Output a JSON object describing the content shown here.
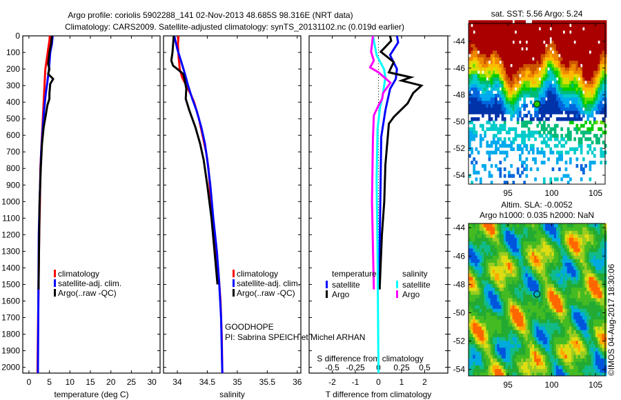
{
  "header": {
    "title_line1": "Argo profile: coriolis 5902288_141 02-Nov-2013 48.685S 98.316E (NRT data)",
    "title_line2": "Climatology: CARS2009. Satellite-adjusted climatology: synTS_20131102.nc (0.019d earlier)"
  },
  "colors": {
    "climatology": "#ff0000",
    "satellite": "#0000ff",
    "argo": "#000000",
    "sal_satellite": "#00ffff",
    "sal_argo": "#ff00ff"
  },
  "depth_axis": {
    "ticks": [
      "0",
      "100",
      "200",
      "300",
      "400",
      "500",
      "600",
      "700",
      "800",
      "900",
      "1000",
      "1100",
      "1200",
      "1300",
      "1400",
      "1500",
      "1600",
      "1700",
      "1800",
      "1900",
      "2000"
    ],
    "range": [
      0,
      2035
    ]
  },
  "chart_data": [
    {
      "type": "line",
      "xlabel": "temperature (deg C)",
      "ylabel": "depth",
      "xlim": [
        -1.5,
        32
      ],
      "ylim": [
        2035,
        0
      ],
      "xticks": [
        0,
        5,
        10,
        15,
        20,
        25,
        30
      ],
      "legend": {
        "placement": "lower-middle",
        "entries": [
          "climatology",
          "satellite-adj. clim.",
          "Argo(..raw -QC)"
        ]
      },
      "series": [
        {
          "name": "climatology",
          "color": "#ff0000",
          "points": [
            [
              5.1,
              0
            ],
            [
              5.0,
              30
            ],
            [
              4.7,
              80
            ],
            [
              4.3,
              150
            ],
            [
              4.0,
              200
            ],
            [
              3.8,
              300
            ],
            [
              3.6,
              400
            ],
            [
              3.4,
              500
            ],
            [
              3.1,
              650
            ],
            [
              2.8,
              800
            ],
            [
              2.7,
              1000
            ],
            [
              2.5,
              1200
            ],
            [
              2.4,
              1400
            ],
            [
              2.3,
              1600
            ],
            [
              2.2,
              1800
            ],
            [
              2.1,
              2000
            ],
            [
              2.1,
              2035
            ]
          ]
        },
        {
          "name": "satellite-adj. clim.",
          "color": "#0000ff",
          "points": [
            [
              5.8,
              0
            ],
            [
              5.6,
              50
            ],
            [
              5.2,
              100
            ],
            [
              4.9,
              200
            ],
            [
              4.5,
              280
            ],
            [
              4.1,
              350
            ],
            [
              3.7,
              450
            ],
            [
              3.4,
              550
            ],
            [
              3.0,
              700
            ],
            [
              2.8,
              850
            ],
            [
              2.6,
              1000
            ],
            [
              2.4,
              1200
            ],
            [
              2.35,
              1400
            ],
            [
              2.3,
              1600
            ],
            [
              2.25,
              1800
            ],
            [
              2.2,
              2000
            ],
            [
              2.2,
              2035
            ]
          ]
        },
        {
          "name": "Argo(..raw -QC)",
          "color": "#000000",
          "points": [
            [
              5.6,
              0
            ],
            [
              5.4,
              50
            ],
            [
              5.0,
              100
            ],
            [
              4.7,
              170
            ],
            [
              5.0,
              200
            ],
            [
              4.7,
              230
            ],
            [
              5.9,
              260
            ],
            [
              5.2,
              290
            ],
            [
              5.0,
              350
            ],
            [
              5.0,
              380
            ],
            [
              4.5,
              420
            ],
            [
              4.1,
              480
            ],
            [
              3.6,
              550
            ],
            [
              3.2,
              650
            ],
            [
              2.9,
              800
            ],
            [
              2.6,
              1000
            ],
            [
              2.5,
              1200
            ],
            [
              2.4,
              1400
            ],
            [
              2.35,
              1530
            ]
          ]
        }
      ]
    },
    {
      "type": "line",
      "xlabel": "salinity",
      "ylabel": "depth",
      "xlim": [
        33.77,
        36.06
      ],
      "ylim": [
        2035,
        0
      ],
      "xticks": [
        34,
        34.5,
        35,
        35.5,
        36
      ],
      "legend": {
        "placement": "lower-middle",
        "entries": [
          "climatology",
          "satellite-adj. clim.",
          "Argo(..raw -QC)"
        ]
      },
      "series": [
        {
          "name": "climatology",
          "color": "#ff0000",
          "points": [
            [
              34.02,
              0
            ],
            [
              34.01,
              50
            ],
            [
              34.02,
              120
            ],
            [
              34.04,
              200
            ],
            [
              34.08,
              250
            ],
            [
              34.15,
              300
            ],
            [
              34.22,
              350
            ],
            [
              34.28,
              400
            ],
            [
              34.36,
              500
            ],
            [
              34.42,
              600
            ],
            [
              34.48,
              700
            ],
            [
              34.52,
              800
            ],
            [
              34.56,
              1000
            ],
            [
              34.62,
              1200
            ],
            [
              34.68,
              1400
            ],
            [
              34.72,
              1600
            ],
            [
              34.74,
              1800
            ],
            [
              34.75,
              2035
            ]
          ]
        },
        {
          "name": "satellite-adj. clim.",
          "color": "#0000ff",
          "points": [
            [
              33.95,
              0
            ],
            [
              34.0,
              80
            ],
            [
              34.06,
              150
            ],
            [
              34.12,
              220
            ],
            [
              34.18,
              300
            ],
            [
              34.25,
              380
            ],
            [
              34.32,
              450
            ],
            [
              34.4,
              550
            ],
            [
              34.46,
              650
            ],
            [
              34.5,
              750
            ],
            [
              34.55,
              900
            ],
            [
              34.6,
              1100
            ],
            [
              34.66,
              1300
            ],
            [
              34.7,
              1500
            ],
            [
              34.73,
              1700
            ],
            [
              34.75,
              2035
            ]
          ]
        },
        {
          "name": "Argo(..raw -QC)",
          "color": "#000000",
          "points": [
            [
              33.94,
              0
            ],
            [
              33.93,
              50
            ],
            [
              33.92,
              100
            ],
            [
              33.9,
              150
            ],
            [
              33.93,
              180
            ],
            [
              34.0,
              200
            ],
            [
              34.1,
              230
            ],
            [
              34.13,
              280
            ],
            [
              34.15,
              320
            ],
            [
              34.14,
              380
            ],
            [
              34.2,
              450
            ],
            [
              34.3,
              550
            ],
            [
              34.38,
              650
            ],
            [
              34.44,
              750
            ],
            [
              34.5,
              900
            ],
            [
              34.57,
              1100
            ],
            [
              34.62,
              1300
            ],
            [
              34.67,
              1500
            ]
          ]
        }
      ]
    },
    {
      "type": "line",
      "xlabel": "T difference from climatology",
      "xlabel_top": "S difference from climatology",
      "ylabel": "depth",
      "xlim": [
        -3,
        3
      ],
      "s_xlim": [
        -0.75,
        0.75
      ],
      "ylim": [
        2035,
        0
      ],
      "xticks": [
        -2,
        -1,
        0,
        1,
        2
      ],
      "s_xticks": [
        "-0.5",
        "-0.25",
        "0",
        "0.25",
        "0.5"
      ],
      "legend": {
        "placement": "lower-middle",
        "temperature_label": "temperature",
        "salinity_label": "salinity",
        "entries": [
          "satellite",
          "Argo",
          "satellite",
          "Argo"
        ]
      },
      "series": [
        {
          "name": "T satellite",
          "axis": "T",
          "color": "#0000ff",
          "points": [
            [
              0.8,
              0
            ],
            [
              0.85,
              40
            ],
            [
              0.5,
              116
            ],
            [
              0.8,
              200
            ],
            [
              0.75,
              260
            ],
            [
              0.5,
              320
            ],
            [
              0.3,
              450
            ],
            [
              0.12,
              610
            ],
            [
              0.08,
              1000
            ],
            [
              0.03,
              1500
            ]
          ]
        },
        {
          "name": "T Argo",
          "axis": "T",
          "color": "#000000",
          "points": [
            [
              0.5,
              0
            ],
            [
              0.55,
              30
            ],
            [
              0.1,
              96
            ],
            [
              0.66,
              158
            ],
            [
              0.45,
              220
            ],
            [
              1.4,
              250
            ],
            [
              1.0,
              270
            ],
            [
              1.86,
              300
            ],
            [
              1.5,
              345
            ],
            [
              1.26,
              408
            ],
            [
              0.66,
              490
            ],
            [
              0.45,
              530
            ],
            [
              0.3,
              780
            ],
            [
              0.25,
              1000
            ],
            [
              0.15,
              1200
            ],
            [
              0.05,
              1530
            ]
          ]
        },
        {
          "name": "S satellite",
          "axis": "S",
          "color": "#00ffff",
          "points": [
            [
              -0.06,
              0
            ],
            [
              -0.02,
              116
            ],
            [
              0.06,
              200
            ],
            [
              0.075,
              250
            ],
            [
              0.05,
              345
            ],
            [
              0.015,
              440
            ],
            [
              -0.01,
              560
            ],
            [
              -0.02,
              870
            ],
            [
              -0.01,
              1300
            ],
            [
              0,
              2035
            ]
          ]
        },
        {
          "name": "S Argo",
          "axis": "S",
          "color": "#ff00ff",
          "points": [
            [
              -0.06,
              0
            ],
            [
              -0.08,
              96
            ],
            [
              -0.05,
              150
            ],
            [
              -0.09,
              190
            ],
            [
              0,
              220
            ],
            [
              0.13,
              283
            ],
            [
              0.05,
              345
            ],
            [
              0.04,
              380
            ],
            [
              0,
              420
            ],
            [
              -0.05,
              480
            ],
            [
              -0.06,
              615
            ],
            [
              -0.07,
              1000
            ],
            [
              -0.05,
              1530
            ]
          ]
        }
      ]
    }
  ],
  "maps": [
    {
      "type": "heatmap",
      "title": "sat. SST: 5.56 Argo: 5.24",
      "xlim": [
        90.5,
        106.1
      ],
      "ylim": [
        -54.67,
        -42.66
      ],
      "xticks": [
        95,
        100,
        105
      ],
      "yticks": [
        -44,
        -46,
        -48,
        -50,
        -52,
        -54
      ],
      "marker": {
        "lon": 98.316,
        "lat": -48.685
      }
    },
    {
      "type": "heatmap",
      "title_line1": "Altim. SLA: -0.0052",
      "title_line2": "Argo h1000: 0.035 h2000: NaN",
      "xlim": [
        90.5,
        106.1
      ],
      "ylim": [
        -54.45,
        -43.7
      ],
      "xticks": [
        95,
        100,
        105
      ],
      "yticks": [
        -44,
        -46,
        -48,
        -50,
        -52,
        -54
      ],
      "marker": {
        "lon": 98.316,
        "lat": -48.685
      }
    }
  ],
  "annotations": {
    "project": "GOODHOPE",
    "pi": "PI: Sabrina SPEICH et Michel ARHAN",
    "credit": "©IMOS 04-Aug-2017 18:30:06"
  }
}
